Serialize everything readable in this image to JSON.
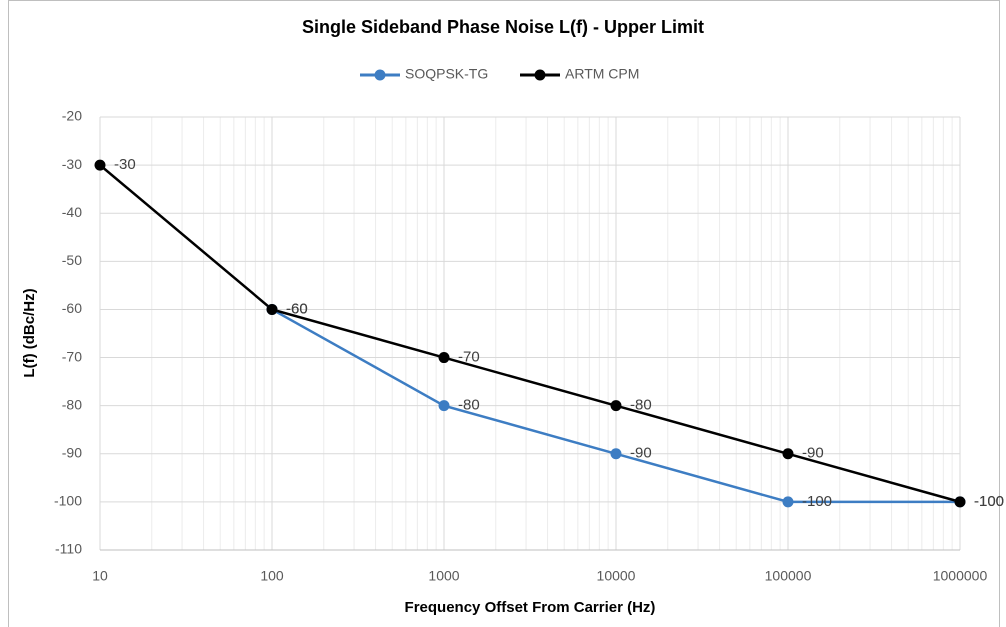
{
  "chart_data": {
    "type": "line",
    "title": "Single Sideband Phase Noise L(f) - Upper Limit",
    "x_label": "Frequency Offset From Carrier (Hz)",
    "y_label": "L(f) (dBc/Hz)",
    "x": [
      10,
      100,
      1000,
      10000,
      100000,
      1000000
    ],
    "series": [
      {
        "name": "SOQPSK-TG",
        "color": "#3d7dc3",
        "values": [
          null,
          -60,
          -80,
          -90,
          -100,
          -100
        ]
      },
      {
        "name": "ARTM CPM",
        "color": "#000000",
        "values": [
          -30,
          -60,
          -70,
          -80,
          -90,
          -100
        ]
      }
    ],
    "xlim": [
      10,
      1000000
    ],
    "xticks": [
      10,
      100,
      1000,
      10000,
      100000,
      1000000
    ],
    "x_log": true,
    "ylim": [
      -110,
      -20
    ],
    "yticks": [
      -110,
      -100,
      -90,
      -80,
      -70,
      -60,
      -50,
      -40,
      -30,
      -20
    ],
    "grid": true,
    "minor_grid": true,
    "legend": "top",
    "data_labels": true
  }
}
